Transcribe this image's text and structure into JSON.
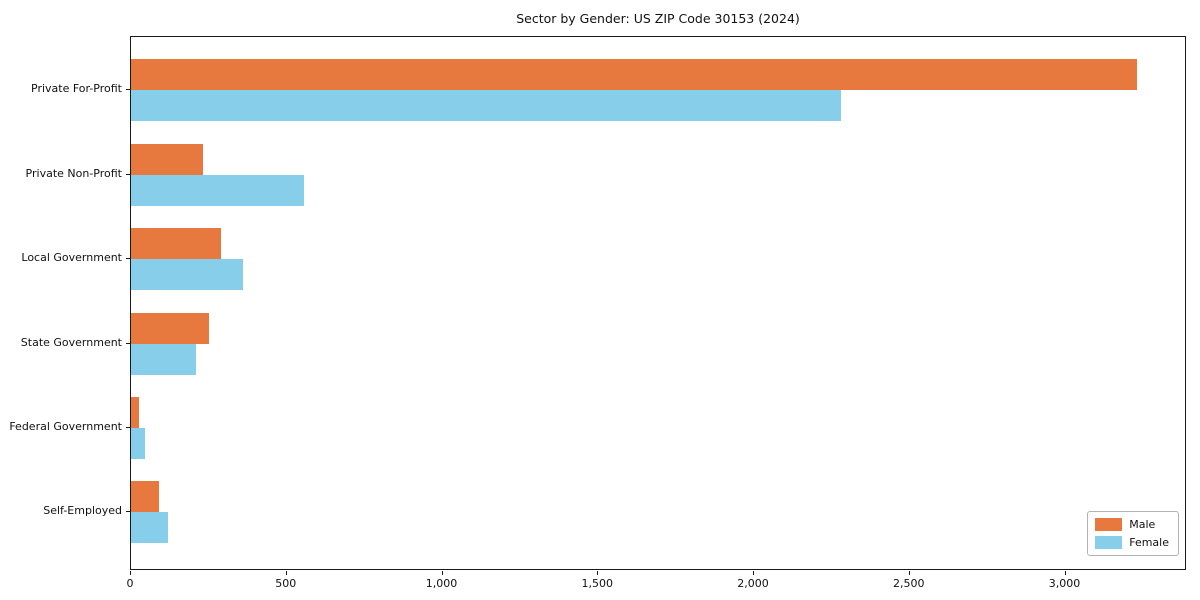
{
  "chart_data": {
    "type": "bar",
    "orientation": "horizontal",
    "title": "Sector by Gender: US ZIP Code 30153 (2024)",
    "categories": [
      "Private For-Profit",
      "Private Non-Profit",
      "Local Government",
      "State Government",
      "Federal Government",
      "Self-Employed"
    ],
    "series": [
      {
        "name": "Male",
        "color": "#e8793e",
        "values": [
          3230,
          230,
          290,
          250,
          25,
          90
        ]
      },
      {
        "name": "Female",
        "color": "#87ceeb",
        "values": [
          2280,
          555,
          360,
          210,
          45,
          120
        ]
      }
    ],
    "xlabel": "",
    "ylabel": "",
    "xlim": [
      0,
      3390
    ],
    "x_ticks": [
      0,
      500,
      1000,
      1500,
      2000,
      2500,
      3000
    ],
    "x_tick_labels": [
      "0",
      "500",
      "1,000",
      "1,500",
      "2,000",
      "2,500",
      "3,000"
    ],
    "grid": false,
    "legend_position": "lower right"
  },
  "colors": {
    "axis": "#1a1a1a",
    "text": "#111111",
    "male": "#e8793e",
    "female": "#87ceeb",
    "legend_border": "#b3b3b3",
    "background": "#ffffff"
  }
}
